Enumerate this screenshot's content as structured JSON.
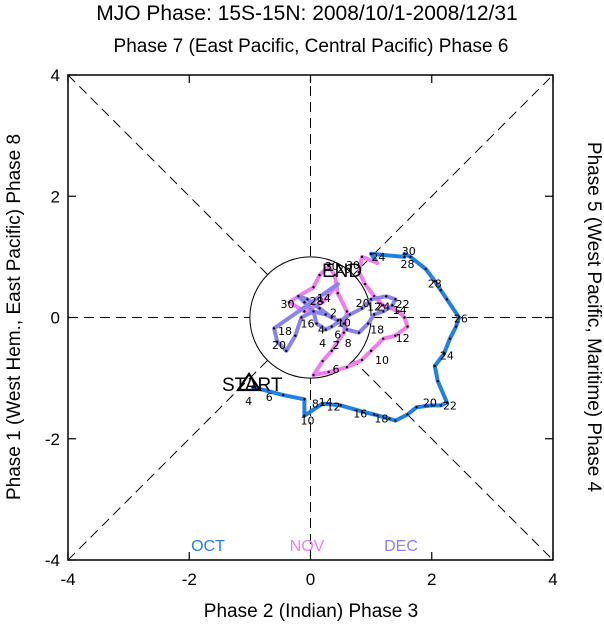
{
  "chart_data": {
    "type": "line",
    "title": "MJO Phase: 15S-15N: 2008/10/1-2008/12/31",
    "labels": {
      "top": "Phase 7 (East Pacific, Central Pacific) Phase 6",
      "bottom": "Phase 2 (Indian) Phase 3",
      "left": "Phase 1 (West Hem., East Pacific) Phase 8",
      "right": "Phase 5 (West Pacific, Maritime) Phase 4"
    },
    "xlim": [
      -4,
      4
    ],
    "ylim": [
      -4,
      4
    ],
    "xticks": [
      "-4",
      "-2",
      "0",
      "2",
      "4"
    ],
    "yticks": [
      "-4",
      "-2",
      "0",
      "2",
      "4"
    ],
    "unit_circle_radius": 1,
    "start_label": "START",
    "end_label": "END",
    "legend_position": "bottom",
    "series": [
      {
        "name": "OCT",
        "color": "#1f80e8",
        "points": [
          [
            -0.95,
            -1.15
          ],
          [
            -0.45,
            -1.28
          ],
          [
            -0.1,
            -1.35
          ],
          [
            -0.1,
            -1.62
          ],
          [
            0.2,
            -1.42
          ],
          [
            0.5,
            -1.45
          ],
          [
            0.85,
            -1.55
          ],
          [
            1.05,
            -1.6
          ],
          [
            1.3,
            -1.67
          ],
          [
            1.4,
            -1.7
          ],
          [
            1.6,
            -1.6
          ],
          [
            1.75,
            -1.48
          ],
          [
            2.0,
            -1.45
          ],
          [
            2.15,
            -1.45
          ],
          [
            2.25,
            -1.4
          ],
          [
            2.1,
            -1.05
          ],
          [
            2.05,
            -0.8
          ],
          [
            2.2,
            -0.6
          ],
          [
            2.3,
            -0.35
          ],
          [
            2.4,
            -0.15
          ],
          [
            2.45,
            0.0
          ],
          [
            2.25,
            0.3
          ],
          [
            2.15,
            0.45
          ],
          [
            2.05,
            0.6
          ],
          [
            1.9,
            0.8
          ],
          [
            1.65,
            1.0
          ],
          [
            1.55,
            1.05
          ],
          [
            1.55,
            1.0
          ],
          [
            1.0,
            1.05
          ],
          [
            1.1,
            0.9
          ]
        ],
        "labels": [
          {
            "text": "4",
            "x": -1.02,
            "y": -1.38
          },
          {
            "text": "6",
            "x": -0.68,
            "y": -1.31
          },
          {
            "text": "8",
            "x": 0.08,
            "y": -1.42
          },
          {
            "text": "10",
            "x": -0.05,
            "y": -1.7
          },
          {
            "text": "12",
            "x": 0.38,
            "y": -1.47
          },
          {
            "text": "14",
            "x": 0.25,
            "y": -1.39
          },
          {
            "text": "16",
            "x": 0.82,
            "y": -1.58
          },
          {
            "text": "18",
            "x": 1.17,
            "y": -1.67
          },
          {
            "text": "20",
            "x": 1.97,
            "y": -1.4
          },
          {
            "text": "22",
            "x": 2.3,
            "y": -1.45
          },
          {
            "text": "24",
            "x": 2.25,
            "y": -0.63
          },
          {
            "text": "26",
            "x": 2.48,
            "y": -0.02
          },
          {
            "text": "28",
            "x": 2.05,
            "y": 0.56
          },
          {
            "text": "28",
            "x": 1.6,
            "y": 0.88
          },
          {
            "text": "30",
            "x": 1.62,
            "y": 1.1
          },
          {
            "text": "24",
            "x": 1.12,
            "y": 1.0
          }
        ]
      },
      {
        "name": "NOV",
        "color": "#f27cf0",
        "points": [
          [
            0.85,
            1.0
          ],
          [
            0.8,
            0.75
          ],
          [
            0.9,
            0.55
          ],
          [
            1.05,
            0.35
          ],
          [
            1.2,
            0.2
          ],
          [
            1.45,
            0.1
          ],
          [
            1.55,
            0.0
          ],
          [
            1.6,
            -0.15
          ],
          [
            1.4,
            -0.3
          ],
          [
            1.2,
            -0.35
          ],
          [
            1.0,
            -0.55
          ],
          [
            0.85,
            -0.7
          ],
          [
            0.6,
            -0.82
          ],
          [
            0.3,
            -0.9
          ],
          [
            0.05,
            -0.95
          ],
          [
            0.2,
            -0.72
          ],
          [
            0.35,
            -0.55
          ],
          [
            0.45,
            -0.4
          ],
          [
            0.55,
            -0.25
          ],
          [
            0.6,
            0.1
          ],
          [
            0.45,
            0.4
          ],
          [
            0.4,
            0.7
          ],
          [
            0.3,
            0.85
          ],
          [
            0.15,
            0.7
          ],
          [
            0.05,
            0.5
          ],
          [
            -0.2,
            0.35
          ],
          [
            -0.35,
            0.25
          ],
          [
            -0.1,
            0.1
          ],
          [
            0.2,
            0.25
          ],
          [
            0.45,
            0.55
          ]
        ],
        "labels": [
          {
            "text": "30",
            "x": 0.7,
            "y": 0.87
          },
          {
            "text": "30",
            "x": 0.35,
            "y": 0.85
          },
          {
            "text": "26",
            "x": 0.55,
            "y": 0.8
          },
          {
            "text": "20",
            "x": 0.86,
            "y": 0.24
          },
          {
            "text": "22",
            "x": 1.52,
            "y": 0.22
          },
          {
            "text": "14",
            "x": 1.47,
            "y": 0.12
          },
          {
            "text": "12",
            "x": 1.52,
            "y": -0.34
          },
          {
            "text": "18",
            "x": 1.1,
            "y": -0.2
          },
          {
            "text": "10",
            "x": 1.18,
            "y": -0.7
          },
          {
            "text": "6",
            "x": 0.42,
            "y": -0.85
          },
          {
            "text": "8",
            "x": 0.62,
            "y": -0.42
          },
          {
            "text": "2",
            "x": 0.42,
            "y": -0.45
          },
          {
            "text": "4",
            "x": 0.2,
            "y": -0.42
          },
          {
            "text": "30",
            "x": -0.38,
            "y": 0.22
          },
          {
            "text": "28",
            "x": 0.1,
            "y": 0.27
          }
        ]
      },
      {
        "name": "DEC",
        "color": "#8c82ec",
        "points": [
          [
            -0.6,
            -0.18
          ],
          [
            -0.55,
            -0.4
          ],
          [
            -0.4,
            -0.55
          ],
          [
            -0.25,
            -0.3
          ],
          [
            -0.15,
            0.0
          ],
          [
            0.05,
            0.1
          ],
          [
            0.25,
            0.05
          ],
          [
            0.45,
            -0.05
          ],
          [
            0.6,
            -0.2
          ],
          [
            0.8,
            -0.25
          ],
          [
            0.95,
            -0.1
          ],
          [
            1.05,
            0.05
          ],
          [
            1.2,
            0.1
          ],
          [
            1.35,
            0.2
          ],
          [
            1.4,
            0.3
          ],
          [
            1.25,
            0.35
          ],
          [
            1.0,
            0.3
          ],
          [
            0.85,
            0.15
          ],
          [
            0.65,
            0.05
          ],
          [
            0.5,
            -0.05
          ],
          [
            0.35,
            -0.15
          ],
          [
            0.25,
            -0.2
          ],
          [
            0.1,
            -0.1
          ],
          [
            0.05,
            0.1
          ],
          [
            -0.1,
            0.25
          ],
          [
            -0.2,
            0.35
          ],
          [
            -0.05,
            0.3
          ],
          [
            0.15,
            0.15
          ],
          [
            0.35,
            0.0
          ],
          [
            0.55,
            -0.1
          ]
        ],
        "labels": [
          {
            "text": "20",
            "x": -0.52,
            "y": -0.45
          },
          {
            "text": "18",
            "x": -0.42,
            "y": -0.22
          },
          {
            "text": "16",
            "x": -0.05,
            "y": -0.1
          },
          {
            "text": "14",
            "x": 0.22,
            "y": 0.32
          },
          {
            "text": "4",
            "x": 0.18,
            "y": -0.2
          },
          {
            "text": "6",
            "x": 0.45,
            "y": -0.28
          },
          {
            "text": "10",
            "x": 0.55,
            "y": -0.08
          },
          {
            "text": "2",
            "x": 0.38,
            "y": 0.08
          },
          {
            "text": "12",
            "x": 1.05,
            "y": 0.18
          },
          {
            "text": "24",
            "x": 1.2,
            "y": 0.18
          }
        ]
      }
    ]
  }
}
